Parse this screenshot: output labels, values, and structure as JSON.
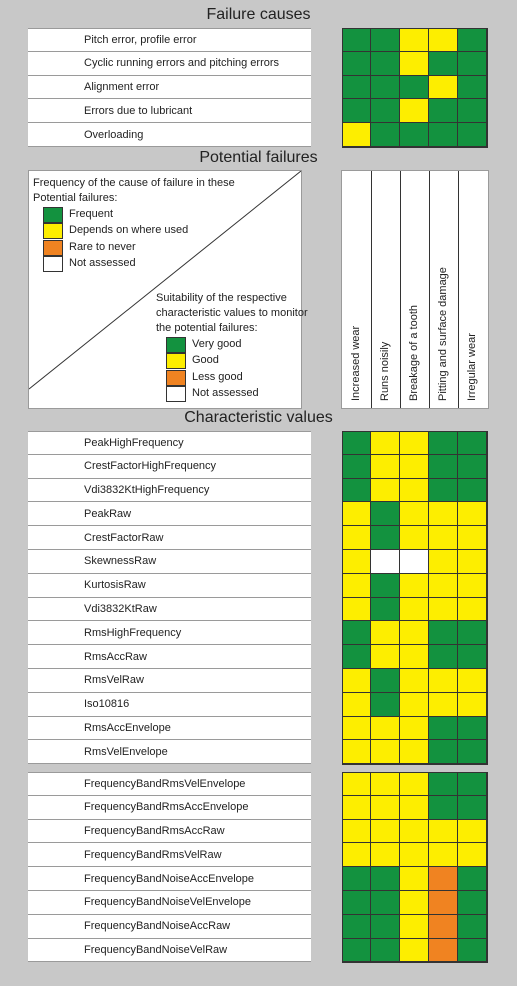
{
  "colors": {
    "very_good": "#13923f",
    "good": "#fdee00",
    "less_good": "#f08321",
    "not_assessed": "#ffffff"
  },
  "failure_causes": {
    "title": "Failure causes",
    "rows": [
      {
        "label": "Pitch error, profile error",
        "cells": [
          "G",
          "G",
          "Y",
          "Y",
          "G"
        ]
      },
      {
        "label": "Cyclic running errors and pitching errors",
        "cells": [
          "G",
          "G",
          "Y",
          "G",
          "G"
        ]
      },
      {
        "label": "Alignment error",
        "cells": [
          "G",
          "G",
          "G",
          "Y",
          "G"
        ]
      },
      {
        "label": "Errors due to lubricant",
        "cells": [
          "G",
          "G",
          "Y",
          "G",
          "G"
        ]
      },
      {
        "label": "Overloading",
        "cells": [
          "Y",
          "G",
          "G",
          "G",
          "G"
        ]
      }
    ]
  },
  "potential_failures": {
    "title": "Potential failures",
    "legend1": {
      "heading_line1": "Frequency of the cause of failure in these",
      "heading_line2": "Potential failures:",
      "items": [
        {
          "label": "Frequent",
          "color": "G"
        },
        {
          "label": "Depends on where used",
          "color": "Y"
        },
        {
          "label": "Rare to never",
          "color": "O"
        },
        {
          "label": "Not assessed",
          "color": "W"
        }
      ]
    },
    "legend2": {
      "heading_line1": "Suitability of the respective",
      "heading_line2": "characteristic values to monitor",
      "heading_line3": "the potential failures:",
      "items": [
        {
          "label": "Very good",
          "color": "G"
        },
        {
          "label": "Good",
          "color": "Y"
        },
        {
          "label": "Less good",
          "color": "O"
        },
        {
          "label": "Not assessed",
          "color": "W"
        }
      ]
    },
    "columns": [
      "Increased wear",
      "Runs noisily",
      "Breakage of a tooth",
      "Pitting and surface damage",
      "Irregular wear"
    ]
  },
  "characteristic_values": {
    "title": "Characteristic values",
    "group1": [
      {
        "label": "PeakHighFrequency",
        "cells": [
          "G",
          "Y",
          "Y",
          "G",
          "G"
        ]
      },
      {
        "label": "CrestFactorHighFrequency",
        "cells": [
          "G",
          "Y",
          "Y",
          "G",
          "G"
        ]
      },
      {
        "label": "Vdi3832KtHighFrequency",
        "cells": [
          "G",
          "Y",
          "Y",
          "G",
          "G"
        ]
      },
      {
        "label": "PeakRaw",
        "cells": [
          "Y",
          "G",
          "Y",
          "Y",
          "Y"
        ]
      },
      {
        "label": "CrestFactorRaw",
        "cells": [
          "Y",
          "G",
          "Y",
          "Y",
          "Y"
        ]
      },
      {
        "label": "SkewnessRaw",
        "cells": [
          "Y",
          "W",
          "W",
          "Y",
          "Y"
        ]
      },
      {
        "label": "KurtosisRaw",
        "cells": [
          "Y",
          "G",
          "Y",
          "Y",
          "Y"
        ]
      },
      {
        "label": "Vdi3832KtRaw",
        "cells": [
          "Y",
          "G",
          "Y",
          "Y",
          "Y"
        ]
      },
      {
        "label": "RmsHighFrequency",
        "cells": [
          "G",
          "Y",
          "Y",
          "G",
          "G"
        ]
      },
      {
        "label": "RmsAccRaw",
        "cells": [
          "G",
          "Y",
          "Y",
          "G",
          "G"
        ]
      },
      {
        "label": "RmsVelRaw",
        "cells": [
          "Y",
          "G",
          "Y",
          "Y",
          "Y"
        ]
      },
      {
        "label": "Iso10816",
        "cells": [
          "Y",
          "G",
          "Y",
          "Y",
          "Y"
        ]
      },
      {
        "label": "RmsAccEnvelope",
        "cells": [
          "Y",
          "Y",
          "Y",
          "G",
          "G"
        ]
      },
      {
        "label": "RmsVelEnvelope",
        "cells": [
          "Y",
          "Y",
          "Y",
          "G",
          "G"
        ]
      }
    ],
    "group2": [
      {
        "label": "FrequencyBandRmsVelEnvelope",
        "cells": [
          "Y",
          "Y",
          "Y",
          "G",
          "G"
        ]
      },
      {
        "label": "FrequencyBandRmsAccEnvelope",
        "cells": [
          "Y",
          "Y",
          "Y",
          "G",
          "G"
        ]
      },
      {
        "label": "FrequencyBandRmsAccRaw",
        "cells": [
          "Y",
          "Y",
          "Y",
          "Y",
          "Y"
        ]
      },
      {
        "label": "FrequencyBandRmsVelRaw",
        "cells": [
          "Y",
          "Y",
          "Y",
          "Y",
          "Y"
        ]
      },
      {
        "label": "FrequencyBandNoiseAccEnvelope",
        "cells": [
          "G",
          "G",
          "Y",
          "O",
          "G"
        ]
      },
      {
        "label": "FrequencyBandNoiseVelEnvelope",
        "cells": [
          "G",
          "G",
          "Y",
          "O",
          "G"
        ]
      },
      {
        "label": "FrequencyBandNoiseAccRaw",
        "cells": [
          "G",
          "G",
          "Y",
          "O",
          "G"
        ]
      },
      {
        "label": "FrequencyBandNoiseVelRaw",
        "cells": [
          "G",
          "G",
          "Y",
          "O",
          "G"
        ]
      }
    ]
  }
}
